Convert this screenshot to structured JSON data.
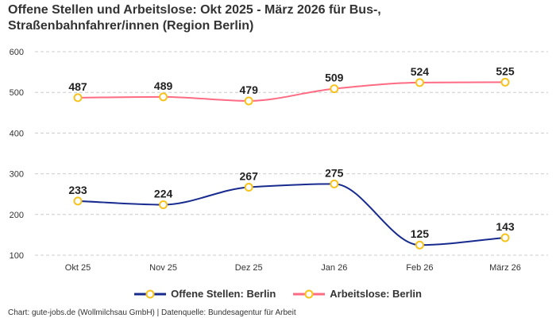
{
  "title": "Offene Stellen und Arbeitslose: Okt 2025 - März 2026 für Bus-, Straßenbahnfahrer/innen (Region Berlin)",
  "footer": "Chart: gute-jobs.de (Wollmilchsau GmbH) | Datenquelle: Bundesagentur für Arbeit",
  "chart_data": {
    "type": "line",
    "title": "Offene Stellen und Arbeitslose: Okt 2025 - März 2026 für Bus-, Straßenbahnfahrer/innen (Region Berlin)",
    "categories": [
      "Okt 25",
      "Nov 25",
      "Dez 25",
      "Jan 26",
      "Feb 26",
      "März 26"
    ],
    "ylim": [
      100,
      600
    ],
    "yticks": [
      100,
      200,
      300,
      400,
      500,
      600
    ],
    "grid": true,
    "legend_position": "bottom",
    "smooth": true,
    "marker_color": "#f6c31c",
    "series": [
      {
        "name": "Offene Stellen: Berlin",
        "color": "#172b8f",
        "values": [
          233,
          224,
          267,
          275,
          125,
          143
        ]
      },
      {
        "name": "Arbeitslose: Berlin",
        "color": "#ff6b83",
        "values": [
          487,
          489,
          479,
          509,
          524,
          525
        ]
      }
    ]
  }
}
